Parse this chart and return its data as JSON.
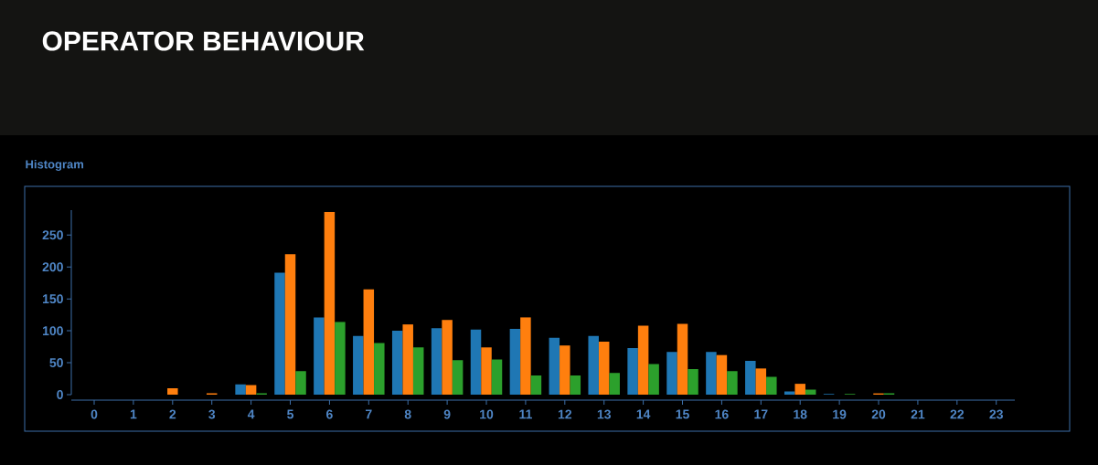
{
  "chart_data": {
    "type": "bar",
    "title": "OPERATOR BEHAVIOUR",
    "subtitle": "Histogram",
    "categories": [
      "0",
      "1",
      "2",
      "3",
      "4",
      "5",
      "6",
      "7",
      "8",
      "9",
      "10",
      "11",
      "12",
      "13",
      "14",
      "15",
      "16",
      "17",
      "18",
      "19",
      "20",
      "21",
      "22",
      "23"
    ],
    "series": [
      {
        "color": "#1f77b4",
        "values": [
          0,
          0,
          0,
          0,
          16,
          191,
          121,
          92,
          100,
          104,
          102,
          103,
          89,
          92,
          73,
          67,
          67,
          53,
          5,
          1,
          0,
          0,
          0,
          0
        ]
      },
      {
        "color": "#ff7f0e",
        "values": [
          0,
          0,
          10,
          2,
          15,
          220,
          286,
          165,
          110,
          117,
          74,
          121,
          77,
          83,
          108,
          111,
          62,
          41,
          17,
          0,
          2,
          0,
          0,
          0
        ]
      },
      {
        "color": "#2ca02c",
        "values": [
          0,
          0,
          0,
          0,
          2,
          37,
          114,
          81,
          74,
          54,
          55,
          30,
          30,
          34,
          48,
          40,
          37,
          28,
          8,
          1,
          2,
          0,
          0,
          0
        ]
      }
    ],
    "ylim": [
      0,
      289
    ],
    "yticks": [
      0,
      50,
      100,
      150,
      200,
      250
    ]
  }
}
